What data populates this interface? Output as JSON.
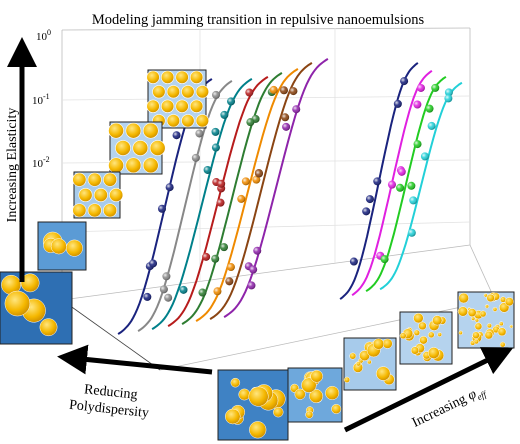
{
  "title": "Modeling jamming transition in repulsive nanoemulsions",
  "y_axis": {
    "ticks": [
      {
        "base": "10",
        "exponent": "0"
      },
      {
        "base": "10",
        "exponent": "-1"
      },
      {
        "base": "10",
        "exponent": "-2"
      }
    ]
  },
  "arrows": {
    "elasticity": "Increasing Elasticity",
    "polydispersity": [
      "Reducing",
      "Polydispersity"
    ],
    "volume_fraction": {
      "text": "Increasing",
      "symbol": "φ",
      "subscript": "eff"
    }
  }
}
